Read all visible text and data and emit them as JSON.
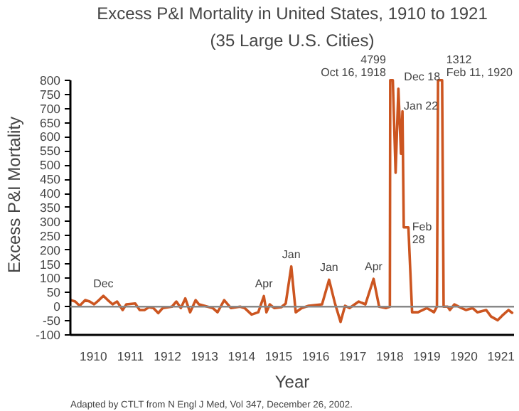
{
  "chart_data": {
    "type": "line",
    "title": "Excess P&I Mortality in United States, 1910 to 1921",
    "subtitle": "(35 Large U.S. Cities)",
    "xlabel": "Year",
    "ylabel": "Excess P&I Mortality",
    "x": [
      1909.385,
      1909.51,
      1909.63,
      1909.78,
      1909.9,
      1910.02,
      1910.15,
      1910.27,
      1910.39,
      1910.52,
      1910.64,
      1910.79,
      1910.89,
      1911.13,
      1911.25,
      1911.38,
      1911.5,
      1911.62,
      1911.75,
      1911.87,
      1912.12,
      1912.24,
      1912.36,
      1912.48,
      1912.61,
      1912.76,
      1912.85,
      1913.22,
      1913.35,
      1913.53,
      1913.71,
      1913.96,
      1914.08,
      1914.27,
      1914.45,
      1914.6,
      1914.67,
      1914.76,
      1914.88,
      1915.07,
      1915.19,
      1915.34,
      1915.46,
      1915.62,
      1915.81,
      1916.17,
      1916.36,
      1916.52,
      1916.67,
      1916.79,
      1916.91,
      1917.16,
      1917.34,
      1917.56,
      1917.71,
      1917.9,
      1918.0,
      1918.01,
      1918.08,
      1918.155,
      1918.23,
      1918.3,
      1918.34,
      1918.375,
      1918.45,
      1918.5,
      1918.6,
      1918.76,
      1919.0,
      1919.19,
      1919.27,
      1919.3,
      1919.41,
      1919.45,
      1919.56,
      1919.62,
      1919.74,
      1919.93,
      1920.05,
      1920.23,
      1920.36,
      1920.6,
      1920.73,
      1920.91,
      1921.03,
      1921.2,
      1921.3
    ],
    "series": [
      {
        "color": "#cc5520",
        "values": [
          23,
          18,
          3,
          23,
          18,
          8,
          23,
          38,
          23,
          8,
          18,
          -12,
          8,
          11,
          -12,
          -12,
          -2,
          -5,
          -23,
          -5,
          0,
          18,
          -5,
          29,
          -20,
          23,
          8,
          -5,
          -20,
          23,
          -5,
          0,
          -5,
          -28,
          -20,
          37,
          -20,
          8,
          -5,
          -2,
          11,
          142,
          -20,
          -5,
          3,
          8,
          95,
          11,
          -54,
          3,
          -5,
          18,
          8,
          98,
          0,
          -5,
          0,
          800,
          800,
          473,
          770,
          540,
          690,
          280,
          280,
          280,
          -20,
          -20,
          -5,
          -20,
          0,
          800,
          800,
          0,
          0,
          -12,
          8,
          -5,
          -12,
          -5,
          -20,
          -12,
          -35,
          -48,
          -32,
          -12,
          -22
        ]
      }
    ],
    "xlim": [
      1909.38,
      1921.35
    ],
    "ylim": [
      -100,
      800
    ],
    "xticks": [
      1910,
      1911,
      1912,
      1913,
      1914,
      1915,
      1916,
      1917,
      1918,
      1919,
      1920,
      1921
    ],
    "yticks": [
      -100,
      -50,
      0,
      50,
      100,
      150,
      200,
      250,
      300,
      350,
      400,
      450,
      500,
      550,
      600,
      650,
      700,
      750,
      800
    ],
    "ref_lines": [
      {
        "axis": "y",
        "value": 0,
        "color": "#888888"
      }
    ],
    "annotations": [
      {
        "text": "Dec",
        "x": 1910.27,
        "y": 38
      },
      {
        "text": "Apr",
        "x": 1914.6,
        "y": 37
      },
      {
        "text": "Jan",
        "x": 1915.34,
        "y": 142
      },
      {
        "text": "Jan",
        "x": 1916.36,
        "y": 95
      },
      {
        "text": "Apr",
        "x": 1917.56,
        "y": 98
      },
      {
        "text": "4799\nOct 16, 1918",
        "x": 1918.01,
        "y": 800
      },
      {
        "text": "Dec 18",
        "x": 1918.23,
        "y": 770
      },
      {
        "text": "Jan 22",
        "x": 1918.34,
        "y": 690
      },
      {
        "text": "Feb\n28",
        "x": 1918.45,
        "y": 280
      },
      {
        "text": "1312\nFeb 11, 1920",
        "x": 1919.41,
        "y": 800
      },
      "Adapted by CTLT from N Engl J Med, Vol 347, December 26, 2002."
    ]
  }
}
